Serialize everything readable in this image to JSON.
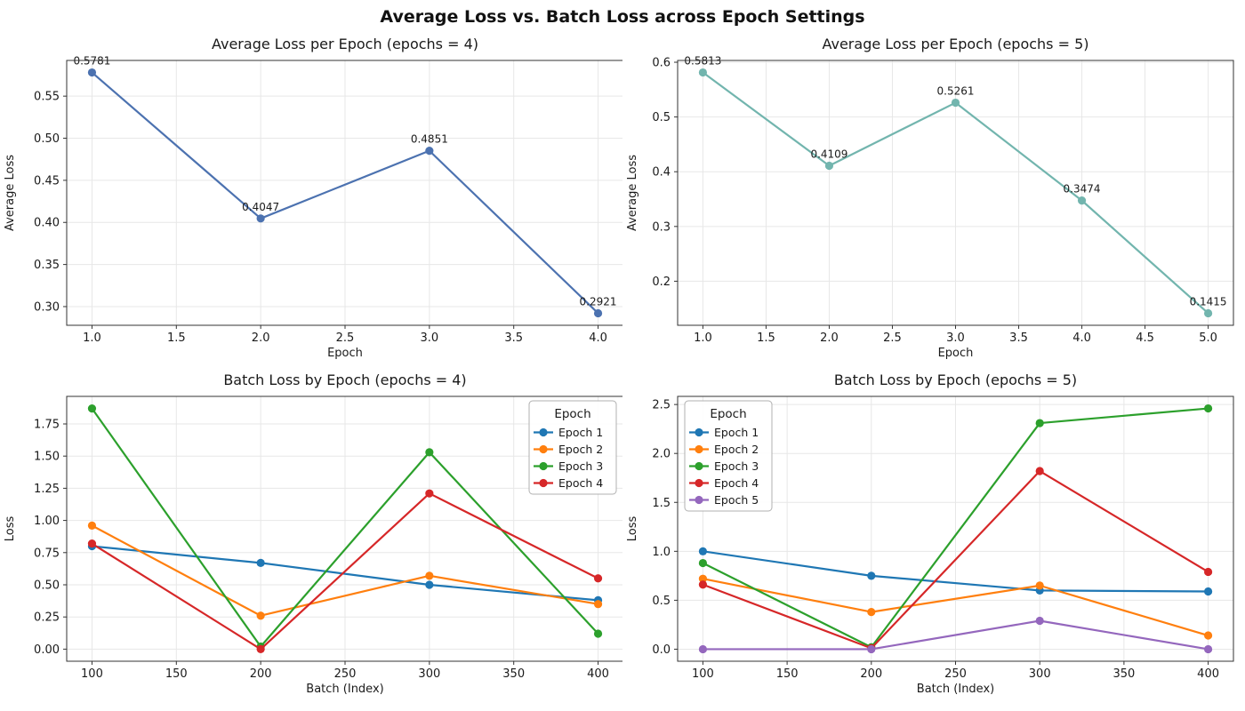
{
  "suptitle": "Average Loss vs. Batch Loss across Epoch Settings",
  "colors": {
    "avg_epochs4_line": "#4c72b0",
    "avg_epochs5_line": "#72b5ae",
    "epoch1": "#1f77b4",
    "epoch2": "#ff7f0e",
    "epoch3": "#2ca02c",
    "epoch4": "#d62728",
    "epoch5": "#9467bd",
    "grid": "#e7e7e7",
    "spine": "#333333",
    "text": "#1a1a1a"
  },
  "chart_data": [
    {
      "type": "line",
      "title": "Average Loss per Epoch (epochs = 4)",
      "xlabel": "Epoch",
      "ylabel": "Average Loss",
      "x": [
        1,
        2,
        3,
        4
      ],
      "series": [
        {
          "name": "Average Loss",
          "color": "#4c72b0",
          "values": [
            0.5781,
            0.4047,
            0.4851,
            0.2921
          ]
        }
      ],
      "point_labels": [
        "0.5781",
        "0.4047",
        "0.4851",
        "0.2921"
      ],
      "xlim": [
        0.85,
        4.15
      ],
      "ylim": [
        0.2778,
        0.5924
      ],
      "xticks": {
        "values": [
          1,
          1.5,
          2,
          2.5,
          3,
          3.5,
          4
        ],
        "labels": [
          "1.0",
          "1.5",
          "2.0",
          "2.5",
          "3.0",
          "3.5",
          "4.0"
        ]
      },
      "yticks": {
        "values": [
          0.3,
          0.35,
          0.4,
          0.45,
          0.5,
          0.55
        ],
        "labels": [
          "0.30",
          "0.35",
          "0.40",
          "0.45",
          "0.50",
          "0.55"
        ]
      },
      "grid": true,
      "legend": null
    },
    {
      "type": "line",
      "title": "Average Loss per Epoch (epochs = 5)",
      "xlabel": "Epoch",
      "ylabel": "Average Loss",
      "x": [
        1,
        2,
        3,
        4,
        5
      ],
      "series": [
        {
          "name": "Average Loss",
          "color": "#72b5ae",
          "values": [
            0.5813,
            0.4109,
            0.5261,
            0.3474,
            0.1415
          ]
        }
      ],
      "point_labels": [
        "0.5813",
        "0.4109",
        "0.5261",
        "0.3474",
        "0.1415"
      ],
      "xlim": [
        0.8,
        5.2
      ],
      "ylim": [
        0.1195,
        0.6033
      ],
      "xticks": {
        "values": [
          1,
          1.5,
          2,
          2.5,
          3,
          3.5,
          4,
          4.5,
          5
        ],
        "labels": [
          "1.0",
          "1.5",
          "2.0",
          "2.5",
          "3.0",
          "3.5",
          "4.0",
          "4.5",
          "5.0"
        ]
      },
      "yticks": {
        "values": [
          0.2,
          0.3,
          0.4,
          0.5,
          0.6
        ],
        "labels": [
          "0.2",
          "0.3",
          "0.4",
          "0.5",
          "0.6"
        ]
      },
      "grid": true,
      "legend": null
    },
    {
      "type": "line",
      "title": "Batch Loss by Epoch (epochs = 4)",
      "xlabel": "Batch (Index)",
      "ylabel": "Loss",
      "x": [
        100,
        200,
        300,
        400
      ],
      "series": [
        {
          "name": "Epoch 1",
          "color": "#1f77b4",
          "values": [
            0.8,
            0.67,
            0.5,
            0.38
          ]
        },
        {
          "name": "Epoch 2",
          "color": "#ff7f0e",
          "values": [
            0.96,
            0.26,
            0.57,
            0.35
          ]
        },
        {
          "name": "Epoch 3",
          "color": "#2ca02c",
          "values": [
            1.87,
            0.02,
            1.53,
            0.12
          ]
        },
        {
          "name": "Epoch 4",
          "color": "#d62728",
          "values": [
            0.82,
            0.0,
            1.21,
            0.55
          ]
        }
      ],
      "point_labels": null,
      "xlim": [
        85,
        415
      ],
      "ylim": [
        -0.094,
        1.964
      ],
      "xticks": {
        "values": [
          100,
          150,
          200,
          250,
          300,
          350,
          400
        ],
        "labels": [
          "100",
          "150",
          "200",
          "250",
          "300",
          "350",
          "400"
        ]
      },
      "yticks": {
        "values": [
          0,
          0.25,
          0.5,
          0.75,
          1.0,
          1.25,
          1.5,
          1.75
        ],
        "labels": [
          "0.00",
          "0.25",
          "0.50",
          "0.75",
          "1.00",
          "1.25",
          "1.50",
          "1.75"
        ]
      },
      "grid": true,
      "legend": {
        "title": "Epoch",
        "position": "upper-right",
        "entries": [
          "Epoch 1",
          "Epoch 2",
          "Epoch 3",
          "Epoch 4"
        ]
      }
    },
    {
      "type": "line",
      "title": "Batch Loss by Epoch (epochs = 5)",
      "xlabel": "Batch (Index)",
      "ylabel": "Loss",
      "x": [
        100,
        200,
        300,
        400
      ],
      "series": [
        {
          "name": "Epoch 1",
          "color": "#1f77b4",
          "values": [
            1.0,
            0.75,
            0.6,
            0.59
          ]
        },
        {
          "name": "Epoch 2",
          "color": "#ff7f0e",
          "values": [
            0.72,
            0.38,
            0.65,
            0.14
          ]
        },
        {
          "name": "Epoch 3",
          "color": "#2ca02c",
          "values": [
            0.88,
            0.02,
            2.31,
            2.46
          ]
        },
        {
          "name": "Epoch 4",
          "color": "#d62728",
          "values": [
            0.66,
            0.01,
            1.82,
            0.79
          ]
        },
        {
          "name": "Epoch 5",
          "color": "#9467bd",
          "values": [
            0.0,
            0.0,
            0.29,
            0.0
          ]
        }
      ],
      "point_labels": null,
      "xlim": [
        85,
        415
      ],
      "ylim": [
        -0.123,
        2.583
      ],
      "xticks": {
        "values": [
          100,
          150,
          200,
          250,
          300,
          350,
          400
        ],
        "labels": [
          "100",
          "150",
          "200",
          "250",
          "300",
          "350",
          "400"
        ]
      },
      "yticks": {
        "values": [
          0,
          0.5,
          1.0,
          1.5,
          2.0,
          2.5
        ],
        "labels": [
          "0.0",
          "0.5",
          "1.0",
          "1.5",
          "2.0",
          "2.5"
        ]
      },
      "grid": true,
      "legend": {
        "title": "Epoch",
        "position": "upper-left",
        "entries": [
          "Epoch 1",
          "Epoch 2",
          "Epoch 3",
          "Epoch 4",
          "Epoch 5"
        ]
      }
    }
  ]
}
